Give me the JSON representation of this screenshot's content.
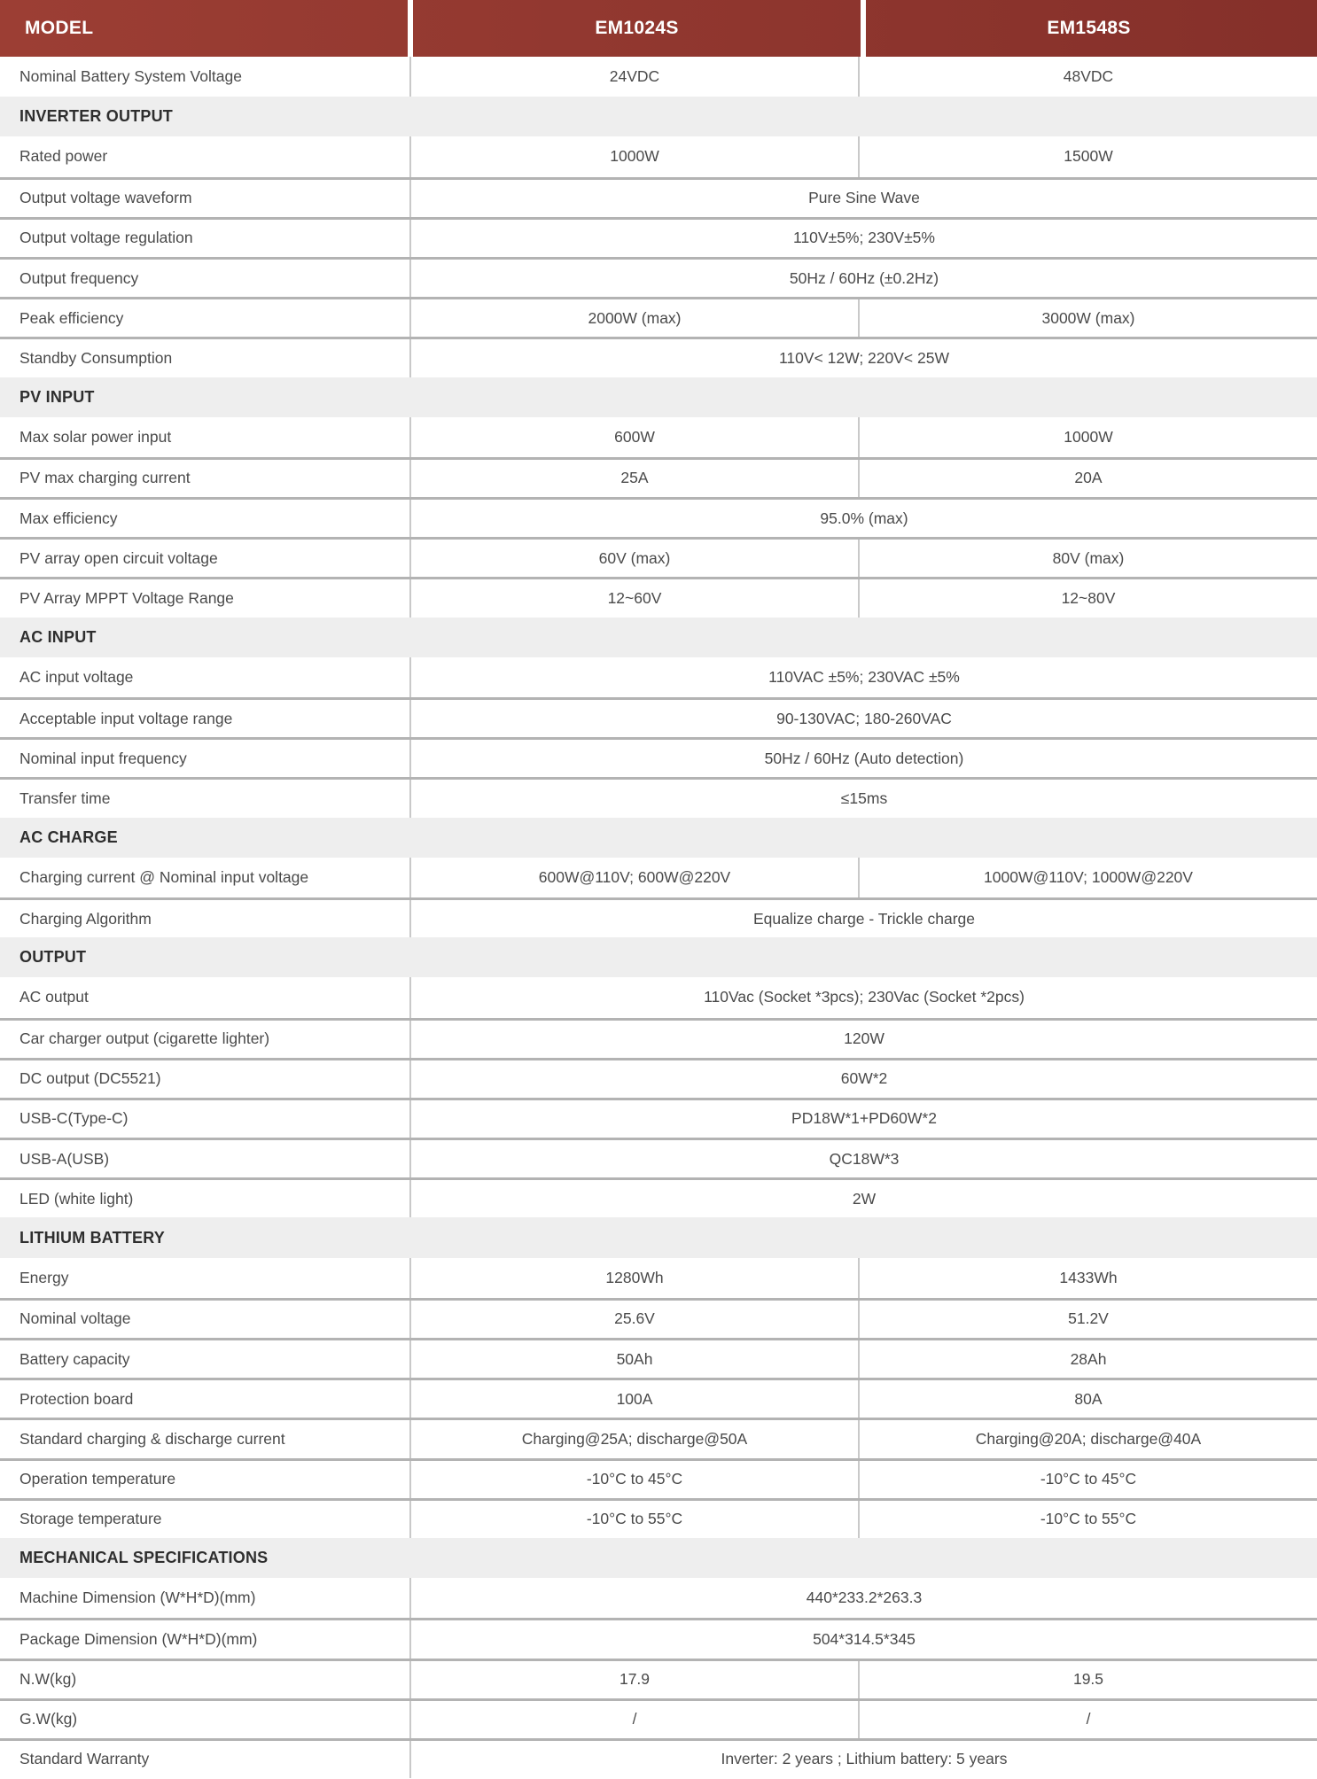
{
  "colors": {
    "header_bg_left": "#9C3E34",
    "header_bg_right": "#85302A",
    "header_text": "#FFFFFF",
    "section_bg": "#EEEEEE",
    "section_text": "#2E2E2E",
    "row_text": "#4A4A4A",
    "row_separator": "#B3B3B3",
    "column_divider": "#C9C9C9"
  },
  "table": {
    "header": {
      "model": "MODEL",
      "col_em1024s": "EM1024S",
      "col_em1548s": "EM1548S"
    },
    "rows": [
      {
        "type": "data",
        "label": "Nominal Battery System Voltage",
        "v1": "24VDC",
        "v2": "48VDC"
      },
      {
        "type": "section",
        "label": "INVERTER OUTPUT"
      },
      {
        "type": "data",
        "label": "Rated power",
        "v1": "1000W",
        "v2": "1500W"
      },
      {
        "type": "data",
        "label": "Output voltage waveform",
        "span": "Pure Sine Wave"
      },
      {
        "type": "data",
        "label": "Output voltage regulation",
        "span": "110V±5%; 230V±5%"
      },
      {
        "type": "data",
        "label": "Output frequency",
        "span": "50Hz / 60Hz (±0.2Hz)"
      },
      {
        "type": "data",
        "label": "Peak efficiency",
        "v1": "2000W (max)",
        "v2": "3000W (max)"
      },
      {
        "type": "data",
        "label": "Standby Consumption",
        "span": "110V< 12W; 220V< 25W"
      },
      {
        "type": "section",
        "label": "PV INPUT"
      },
      {
        "type": "data",
        "label": "Max solar power input",
        "v1": "600W",
        "v2": "1000W"
      },
      {
        "type": "data",
        "label": "PV max charging current",
        "v1": "25A",
        "v2": "20A"
      },
      {
        "type": "data",
        "label": "Max efficiency",
        "span": "95.0% (max)"
      },
      {
        "type": "data",
        "label": "PV array open circuit voltage",
        "v1": "60V (max)",
        "v2": "80V (max)"
      },
      {
        "type": "data",
        "label": "PV Array MPPT Voltage Range",
        "v1": "12~60V",
        "v2": "12~80V"
      },
      {
        "type": "section",
        "label": "AC INPUT"
      },
      {
        "type": "data",
        "label": "AC input voltage",
        "span": "110VAC ±5%; 230VAC ±5%"
      },
      {
        "type": "data",
        "label": "Acceptable input voltage range",
        "span": "90-130VAC; 180-260VAC"
      },
      {
        "type": "data",
        "label": "Nominal input frequency",
        "span": "50Hz / 60Hz (Auto detection)"
      },
      {
        "type": "data",
        "label": "Transfer time",
        "span": "≤15ms"
      },
      {
        "type": "section",
        "label": "AC CHARGE"
      },
      {
        "type": "data",
        "label": "Charging current @ Nominal input voltage",
        "v1": "600W@110V; 600W@220V",
        "v2": "1000W@110V; 1000W@220V"
      },
      {
        "type": "data",
        "label": "Charging Algorithm",
        "span": "Equalize charge - Trickle charge"
      },
      {
        "type": "section",
        "label": "OUTPUT"
      },
      {
        "type": "data",
        "label": "AC output",
        "span": "110Vac (Socket *3pcs); 230Vac (Socket *2pcs)"
      },
      {
        "type": "data",
        "label": "Car charger output (cigarette lighter)",
        "span": "120W"
      },
      {
        "type": "data",
        "label": "DC output (DC5521)",
        "span": "60W*2"
      },
      {
        "type": "data",
        "label": "USB-C(Type-C)",
        "span": "PD18W*1+PD60W*2"
      },
      {
        "type": "data",
        "label": "USB-A(USB)",
        "span": "QC18W*3"
      },
      {
        "type": "data",
        "label": "LED (white light)",
        "span": "2W"
      },
      {
        "type": "section",
        "label": "LITHIUM BATTERY"
      },
      {
        "type": "data",
        "label": "Energy",
        "v1": "1280Wh",
        "v2": "1433Wh"
      },
      {
        "type": "data",
        "label": "Nominal voltage",
        "v1": "25.6V",
        "v2": "51.2V"
      },
      {
        "type": "data",
        "label": "Battery capacity",
        "v1": "50Ah",
        "v2": "28Ah"
      },
      {
        "type": "data",
        "label": "Protection board",
        "v1": "100A",
        "v2": "80A"
      },
      {
        "type": "data",
        "label": "Standard charging & discharge current",
        "v1": "Charging@25A; discharge@50A",
        "v2": "Charging@20A; discharge@40A"
      },
      {
        "type": "data",
        "label": "Operation temperature",
        "v1": "-10°C to 45°C",
        "v2": "-10°C to 45°C"
      },
      {
        "type": "data",
        "label": "Storage temperature",
        "v1": "-10°C to 55°C",
        "v2": "-10°C to 55°C"
      },
      {
        "type": "section",
        "label": "MECHANICAL SPECIFICATIONS"
      },
      {
        "type": "data",
        "label": "Machine Dimension (W*H*D)(mm)",
        "span": "440*233.2*263.3"
      },
      {
        "type": "data",
        "label": "Package Dimension (W*H*D)(mm)",
        "span": "504*314.5*345"
      },
      {
        "type": "data",
        "label": "N.W(kg)",
        "v1": "17.9",
        "v2": "19.5"
      },
      {
        "type": "data",
        "label": "G.W(kg)",
        "v1": "/",
        "v2": "/"
      },
      {
        "type": "data",
        "label": "Standard Warranty",
        "span": "Inverter: 2 years ; Lithium battery: 5 years"
      }
    ]
  }
}
